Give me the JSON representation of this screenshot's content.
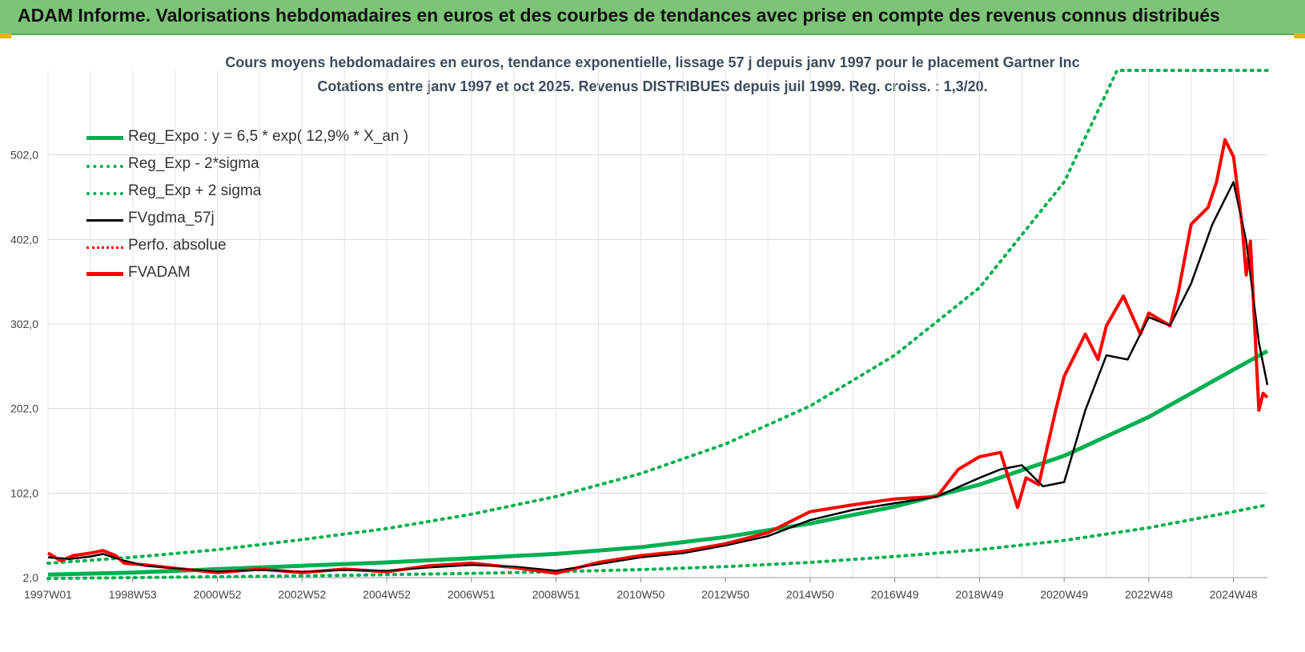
{
  "banner": {
    "title": "ADAM Informe. Valorisations hebdomadaires en euros et des courbes de tendances avec prise en compte des revenus connus distribués"
  },
  "colors": {
    "banner": "#7cc576",
    "trend": "#00b050",
    "adam": "#ff0000",
    "smooth": "#000000",
    "accent": "#e8b400"
  },
  "chart_data": {
    "type": "line",
    "title": "Cours moyens hebdomadaires en euros, tendance exponentielle, lissage 57 j depuis janv 1997 pour le placement Gartner Inc",
    "subtitle": "Cotations entre janv 1997 et oct 2025. Revenus DISTRIBUES depuis juil 1999. Reg. croiss. : 1,3/20.",
    "xlabel": "",
    "ylabel": "",
    "x_range": [
      1997.0,
      2025.8
    ],
    "ylim": [
      2.0,
      602.0
    ],
    "y_ticks": [
      "2,0",
      "102,0",
      "202,0",
      "302,0",
      "402,0",
      "502,0"
    ],
    "y_tick_values": [
      2,
      102,
      202,
      302,
      402,
      502
    ],
    "x_ticks": [
      "1997W01",
      "1998W53",
      "2000W52",
      "2002W52",
      "2004W52",
      "2006W51",
      "2008W51",
      "2010W50",
      "2012W50",
      "2014W50",
      "2016W49",
      "2018W49",
      "2020W49",
      "2022W48",
      "2024W48"
    ],
    "x_tick_values": [
      1997.0,
      1999.0,
      2001.0,
      2003.0,
      2005.0,
      2007.0,
      2009.0,
      2011.0,
      2013.0,
      2015.0,
      2017.0,
      2019.0,
      2021.0,
      2023.0,
      2025.0
    ],
    "grid": "vertical and horizontal",
    "legend_position": "top-left",
    "legend": [
      {
        "label": "Reg_Expo : y = 6,5 * exp( 12,9% *  X_an )",
        "style": "solid-thick",
        "color": "#00b050"
      },
      {
        "label": "Reg_Exp - 2*sigma",
        "style": "dotted",
        "color": "#00b050"
      },
      {
        "label": "Reg_Exp + 2 sigma",
        "style": "dotted",
        "color": "#00b050"
      },
      {
        "label": "FVgdma_57j",
        "style": "solid",
        "color": "#000000"
      },
      {
        "label": "Perfo. absolue",
        "style": "dotted",
        "color": "#ff0000"
      },
      {
        "label": "FVADAM",
        "style": "solid-thick",
        "color": "#ff0000"
      }
    ],
    "series": [
      {
        "name": "Reg_Expo : y = 6,5 * exp( 12,9% *  X_an )",
        "x": [
          1997,
          1999,
          2001,
          2003,
          2005,
          2007,
          2009,
          2011,
          2013,
          2015,
          2017,
          2019,
          2021,
          2023,
          2025,
          2025.8
        ],
        "values": [
          5.5,
          8,
          12,
          16,
          20,
          25,
          30,
          38,
          50,
          66,
          86,
          112,
          146,
          192,
          248,
          270
        ]
      },
      {
        "name": "Reg_Exp - 2*sigma",
        "x": [
          1997,
          1999,
          2001,
          2003,
          2005,
          2007,
          2009,
          2011,
          2013,
          2015,
          2017,
          2019,
          2021,
          2023,
          2025,
          2025.8
        ],
        "values": [
          1,
          2,
          3,
          4,
          5.5,
          7,
          9,
          11.5,
          15,
          20,
          27,
          35,
          46,
          61,
          80,
          88
        ]
      },
      {
        "name": "Reg_Exp + 2 sigma",
        "x": [
          1997,
          1999,
          2001,
          2003,
          2005,
          2007,
          2009,
          2011,
          2013,
          2015,
          2017,
          2019,
          2021,
          2022.25,
          2025.8
        ],
        "values": [
          19,
          26,
          35,
          47,
          60,
          77,
          98,
          125,
          160,
          205,
          265,
          345,
          470,
          602,
          602
        ]
      },
      {
        "name": "FVgdma_57j",
        "x": [
          1997,
          1997.5,
          1998,
          1998.3,
          1998.8,
          1999.3,
          2000,
          2001,
          2002,
          2003,
          2004,
          2005,
          2006,
          2007,
          2008,
          2009,
          2010,
          2011,
          2012,
          2013,
          2014,
          2015,
          2016,
          2017,
          2018,
          2019,
          2019.5,
          2020,
          2020.5,
          2021,
          2021.5,
          2022,
          2022.5,
          2023,
          2023.5,
          2024,
          2024.5,
          2025,
          2025.3,
          2025.6,
          2025.8
        ],
        "values": [
          26,
          24,
          27,
          30,
          22,
          16,
          13,
          9,
          11,
          9,
          11,
          10,
          14,
          17,
          15,
          10,
          18,
          26,
          31,
          40,
          51,
          70,
          82,
          90,
          98,
          120,
          130,
          135,
          110,
          115,
          200,
          265,
          260,
          310,
          300,
          350,
          420,
          470,
          400,
          280,
          230
        ]
      },
      {
        "name": "FVADAM",
        "x": [
          1997,
          1997.3,
          1997.6,
          1998,
          1998.3,
          1998.6,
          1998.8,
          1999.3,
          2000,
          2001,
          2002,
          2003,
          2004,
          2005,
          2006,
          2007,
          2008,
          2009,
          2010,
          2011,
          2012,
          2013,
          2014,
          2015,
          2016,
          2017,
          2018,
          2018.5,
          2019,
          2019.5,
          2019.9,
          2020.1,
          2020.4,
          2020.8,
          2021,
          2021.5,
          2021.8,
          2022,
          2022.4,
          2022.8,
          2023,
          2023.5,
          2023.7,
          2024,
          2024.4,
          2024.6,
          2024.8,
          2025,
          2025.2,
          2025.3,
          2025.4,
          2025.5,
          2025.6,
          2025.7,
          2025.8
        ],
        "values": [
          31,
          22,
          28,
          31,
          34,
          28,
          19,
          17,
          13,
          8,
          12,
          8,
          12,
          9,
          16,
          19,
          14,
          7,
          20,
          28,
          33,
          42,
          55,
          80,
          88,
          95,
          98,
          130,
          145,
          150,
          85,
          120,
          112,
          200,
          240,
          290,
          260,
          300,
          335,
          290,
          315,
          300,
          340,
          420,
          440,
          470,
          520,
          500,
          420,
          360,
          400,
          300,
          200,
          220,
          215
        ]
      }
    ]
  }
}
